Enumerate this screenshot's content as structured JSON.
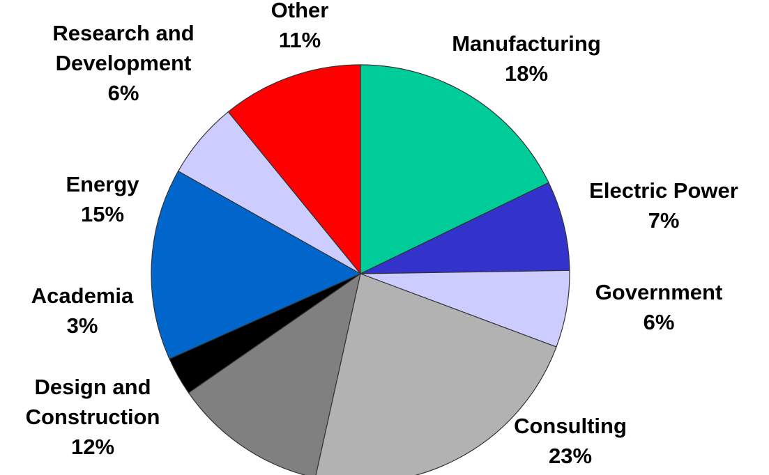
{
  "chart_data": {
    "type": "pie",
    "start_angle_deg": 0,
    "direction": "clockwise",
    "slices": [
      {
        "label": "Manufacturing",
        "value": 18,
        "pct_label": "18%",
        "color": "#00cc99"
      },
      {
        "label": "Electric Power",
        "value": 7,
        "pct_label": "7%",
        "color": "#3333cc"
      },
      {
        "label": "Government",
        "value": 6,
        "pct_label": "6%",
        "color": "#ccccff"
      },
      {
        "label": "Consulting",
        "value": 23,
        "pct_label": "23%",
        "color": "#b2b2b2"
      },
      {
        "label": "Design and Construction",
        "value": 12,
        "pct_label": "12%",
        "color": "#808080"
      },
      {
        "label": "Academia",
        "value": 3,
        "pct_label": "3%",
        "color": "#000000"
      },
      {
        "label": "Energy",
        "value": 15,
        "pct_label": "15%",
        "color": "#0066cc"
      },
      {
        "label": "Research and Development",
        "value": 6,
        "pct_label": "6%",
        "color": "#ccccff"
      },
      {
        "label": "Other",
        "value": 11,
        "pct_label": "11%",
        "color": "#ff0000"
      }
    ]
  }
}
